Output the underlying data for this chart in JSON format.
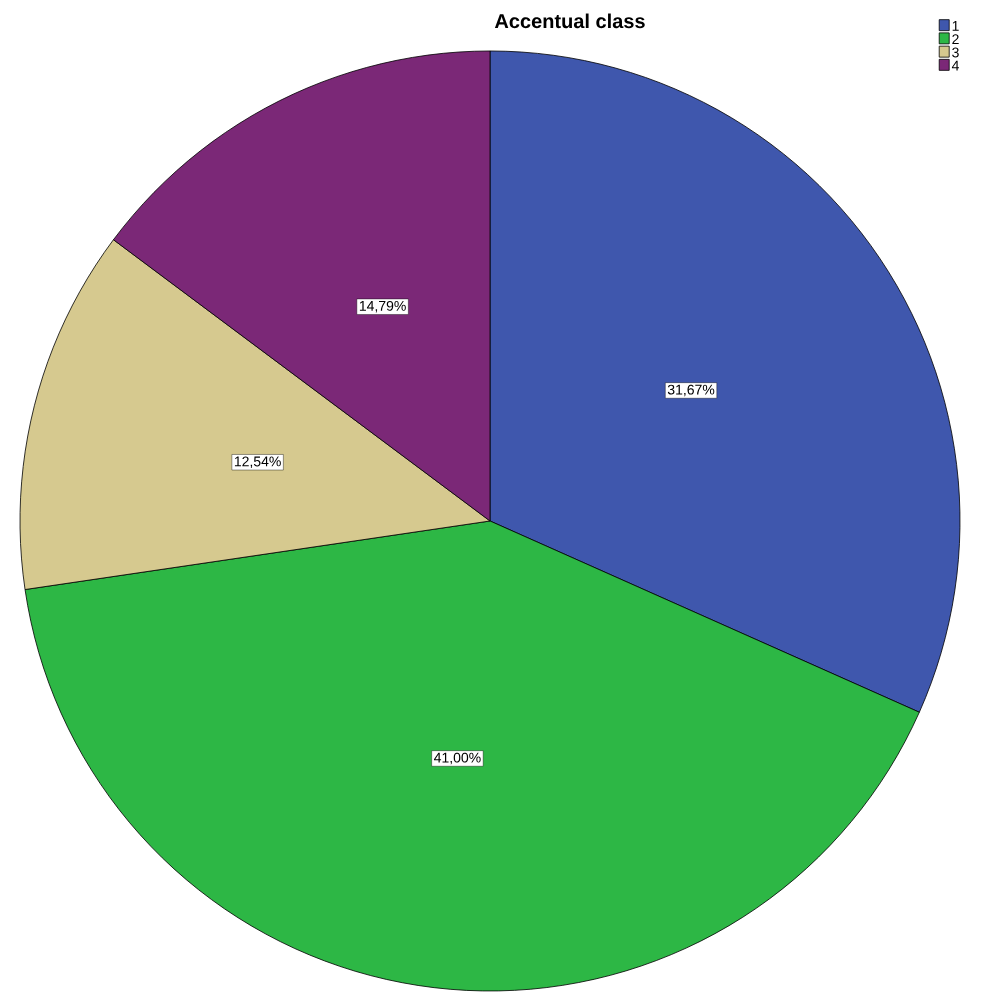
{
  "chart_data": {
    "type": "pie",
    "title": "Accentual class",
    "categories": [
      "1",
      "2",
      "3",
      "4"
    ],
    "values": [
      31.67,
      41.0,
      12.54,
      14.79
    ],
    "colors": [
      "#3f57ad",
      "#2db745",
      "#d6c98f",
      "#7b2877"
    ],
    "value_labels": [
      "31,67%",
      "41,00%",
      "12,54%",
      "14,79%"
    ],
    "legend": "top right"
  }
}
